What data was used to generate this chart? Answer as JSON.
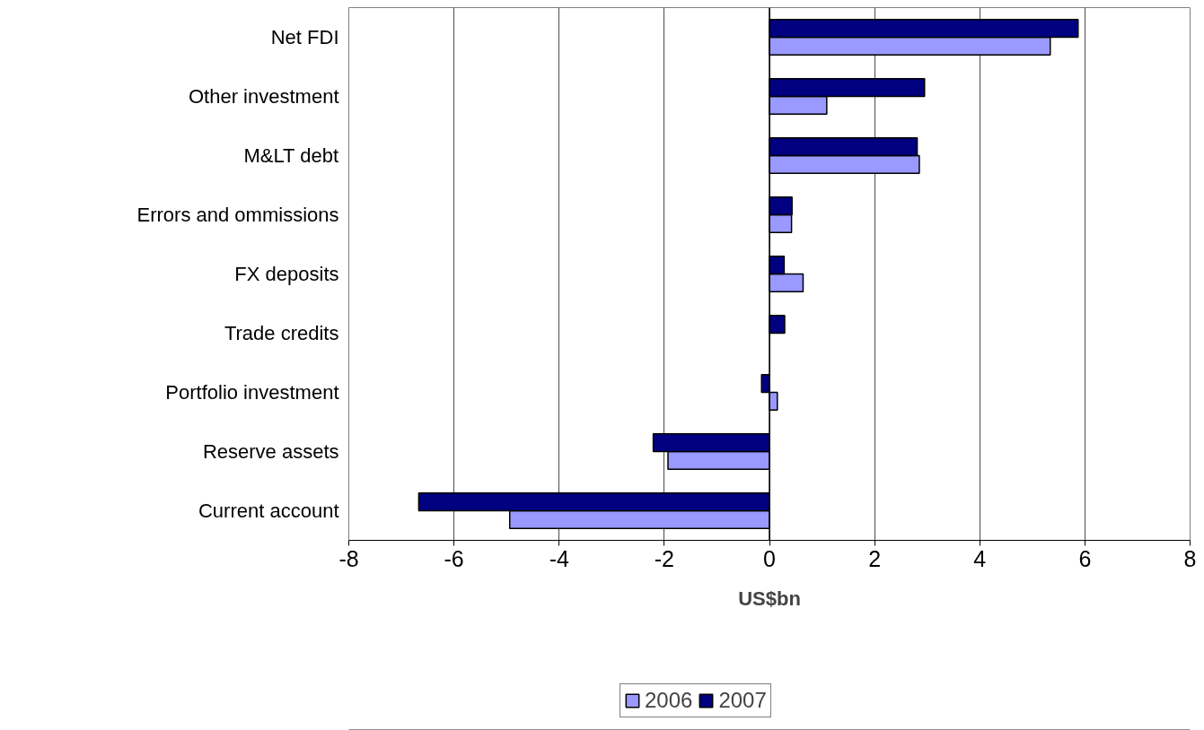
{
  "chart_data": {
    "type": "bar",
    "orientation": "horizontal",
    "xlabel": "US$bn",
    "categories": [
      "Net FDI",
      "Other investment",
      "M&LT debt",
      "Errors and ommissions",
      "FX deposits",
      "Trade credits",
      "Portfolio investment",
      "Reserve assets",
      "Current account"
    ],
    "series": [
      {
        "name": "2006",
        "color": "#9999ff",
        "values": [
          5.34,
          1.09,
          2.85,
          0.42,
          0.64,
          null,
          0.15,
          -1.93,
          -4.94
        ]
      },
      {
        "name": "2007",
        "color": "#000080",
        "values": [
          5.87,
          2.95,
          2.81,
          0.43,
          0.28,
          0.29,
          -0.15,
          -2.21,
          -6.67
        ]
      }
    ],
    "xlim": [
      -8,
      8
    ],
    "xticks": [
      -8,
      -6,
      -4,
      -2,
      0,
      2,
      4,
      6,
      8
    ],
    "grid": "x",
    "legend": "bottom"
  }
}
